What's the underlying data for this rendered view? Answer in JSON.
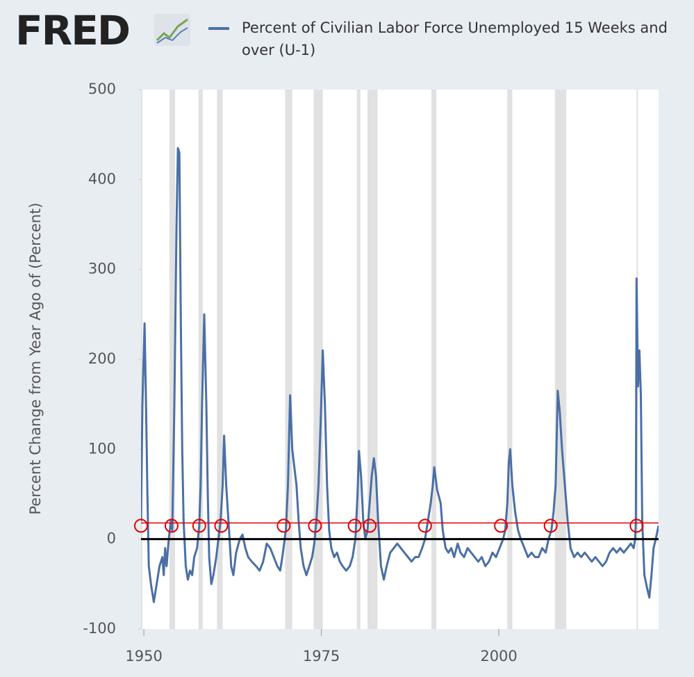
{
  "chart_data": {
    "type": "line",
    "brand": "FRED",
    "y_label": "Percent Change from Year Ago of (Percent)",
    "xlim": [
      1949.6,
      2022.5
    ],
    "ylim": [
      -100,
      500
    ],
    "xticks": [
      1950,
      1975,
      2000
    ],
    "yticks": [
      -100,
      0,
      100,
      200,
      300,
      400,
      500
    ],
    "threshold": 18,
    "highlighted_x": [
      1949.6,
      1953.9,
      1957.8,
      1960.9,
      1969.7,
      1974.1,
      1979.7,
      1981.8,
      1989.6,
      2000.3,
      2007.3,
      2019.4
    ],
    "recessions": [
      [
        1948.9,
        1949.8
      ],
      [
        1953.6,
        1954.4
      ],
      [
        1957.7,
        1958.3
      ],
      [
        1960.3,
        1961.1
      ],
      [
        1969.9,
        1970.9
      ],
      [
        1973.9,
        1975.2
      ],
      [
        1980.0,
        1980.5
      ],
      [
        1981.5,
        1982.9
      ],
      [
        1990.5,
        1991.2
      ],
      [
        2001.2,
        2001.9
      ],
      [
        2007.9,
        2009.5
      ],
      [
        2019.4,
        2019.6
      ]
    ],
    "x": [
      1949.6,
      1949.8,
      1950.1,
      1950.3,
      1950.5,
      1950.7,
      1951.0,
      1951.4,
      1951.8,
      1952.2,
      1952.6,
      1952.8,
      1953.0,
      1953.2,
      1953.5,
      1953.8,
      1954.0,
      1954.3,
      1954.6,
      1954.8,
      1955.0,
      1955.2,
      1955.4,
      1955.6,
      1955.9,
      1956.2,
      1956.5,
      1956.8,
      1957.1,
      1957.5,
      1957.8,
      1958.0,
      1958.2,
      1958.5,
      1958.8,
      1959.0,
      1959.2,
      1959.5,
      1959.8,
      1960.2,
      1960.5,
      1960.8,
      1961.1,
      1961.3,
      1961.6,
      1962.0,
      1962.3,
      1962.6,
      1963.0,
      1963.5,
      1963.9,
      1964.3,
      1964.7,
      1965.2,
      1965.8,
      1966.3,
      1966.8,
      1967.3,
      1967.8,
      1968.3,
      1968.8,
      1969.2,
      1969.5,
      1970.0,
      1970.3,
      1970.6,
      1970.9,
      1971.2,
      1971.5,
      1971.8,
      1972.1,
      1972.5,
      1972.9,
      1973.3,
      1973.7,
      1974.0,
      1974.3,
      1974.6,
      1974.9,
      1975.2,
      1975.5,
      1975.8,
      1976.1,
      1976.4,
      1976.8,
      1977.2,
      1977.6,
      1978.0,
      1978.5,
      1979.0,
      1979.4,
      1979.8,
      1980.1,
      1980.3,
      1980.6,
      1980.9,
      1981.2,
      1981.5,
      1981.8,
      1982.1,
      1982.4,
      1982.7,
      1983.0,
      1983.4,
      1983.8,
      1984.2,
      1984.7,
      1985.2,
      1985.7,
      1986.2,
      1986.7,
      1987.2,
      1987.7,
      1988.2,
      1988.7,
      1989.2,
      1989.6,
      1990.0,
      1990.4,
      1990.7,
      1990.9,
      1991.3,
      1991.8,
      1992.1,
      1992.5,
      1992.9,
      1993.3,
      1993.7,
      1994.2,
      1994.6,
      1995.1,
      1995.6,
      1996.1,
      1996.6,
      1997.1,
      1997.6,
      1998.1,
      1998.6,
      1999.1,
      1999.6,
      2000.1,
      2000.6,
      2000.9,
      2001.2,
      2001.4,
      2001.6,
      2001.9,
      2002.3,
      2002.7,
      2003.1,
      2003.6,
      2004.1,
      2004.6,
      2005.1,
      2005.6,
      2006.1,
      2006.6,
      2007.0,
      2007.4,
      2007.7,
      2008.0,
      2008.3,
      2008.6,
      2008.9,
      2009.3,
      2009.7,
      2010.1,
      2010.6,
      2011.1,
      2011.6,
      2012.1,
      2012.6,
      2013.1,
      2013.6,
      2014.1,
      2014.6,
      2015.1,
      2015.6,
      2016.1,
      2016.6,
      2017.1,
      2017.6,
      2018.1,
      2018.6,
      2019.0,
      2019.2,
      2019.3,
      2019.4,
      2019.6,
      2019.8,
      2020.0,
      2020.2,
      2020.5,
      2020.9,
      2021.2,
      2021.5,
      2021.8,
      2022.1,
      2022.5
    ],
    "series": [
      {
        "name": "Percent of Civilian Labor Force Unemployed 15 Weeks and over (U-1)",
        "color": "#4a6fa5",
        "values": [
          20,
          150,
          240,
          150,
          50,
          -30,
          -50,
          -70,
          -50,
          -30,
          -20,
          -40,
          -10,
          -30,
          0,
          20,
          10,
          150,
          350,
          435,
          430,
          250,
          100,
          20,
          -30,
          -45,
          -35,
          -40,
          -20,
          -10,
          15,
          60,
          150,
          250,
          150,
          50,
          -20,
          -50,
          -40,
          -20,
          0,
          20,
          60,
          115,
          60,
          10,
          -30,
          -40,
          -15,
          0,
          5,
          -10,
          -20,
          -25,
          -30,
          -35,
          -25,
          -5,
          -10,
          -20,
          -30,
          -35,
          -20,
          10,
          60,
          160,
          100,
          80,
          60,
          20,
          -10,
          -30,
          -40,
          -30,
          -20,
          -5,
          20,
          60,
          130,
          210,
          150,
          60,
          10,
          -10,
          -20,
          -15,
          -25,
          -30,
          -35,
          -30,
          -20,
          0,
          50,
          98,
          70,
          20,
          0,
          10,
          40,
          70,
          90,
          70,
          20,
          -30,
          -45,
          -30,
          -15,
          -10,
          -5,
          -10,
          -15,
          -20,
          -25,
          -20,
          -20,
          -10,
          0,
          20,
          40,
          60,
          80,
          55,
          40,
          10,
          -10,
          -15,
          -10,
          -20,
          -5,
          -15,
          -20,
          -10,
          -15,
          -20,
          -25,
          -20,
          -30,
          -25,
          -15,
          -20,
          -10,
          0,
          10,
          40,
          85,
          100,
          60,
          30,
          10,
          0,
          -10,
          -20,
          -15,
          -20,
          -20,
          -10,
          -15,
          0,
          10,
          30,
          60,
          165,
          140,
          100,
          60,
          20,
          -10,
          -20,
          -15,
          -20,
          -15,
          -20,
          -25,
          -20,
          -25,
          -30,
          -25,
          -15,
          -10,
          -15,
          -10,
          -15,
          -10,
          -5,
          -10,
          0,
          20,
          290,
          170,
          210,
          160,
          20,
          -40,
          -55,
          -65,
          -40,
          -10,
          0,
          15
        ]
      }
    ]
  }
}
